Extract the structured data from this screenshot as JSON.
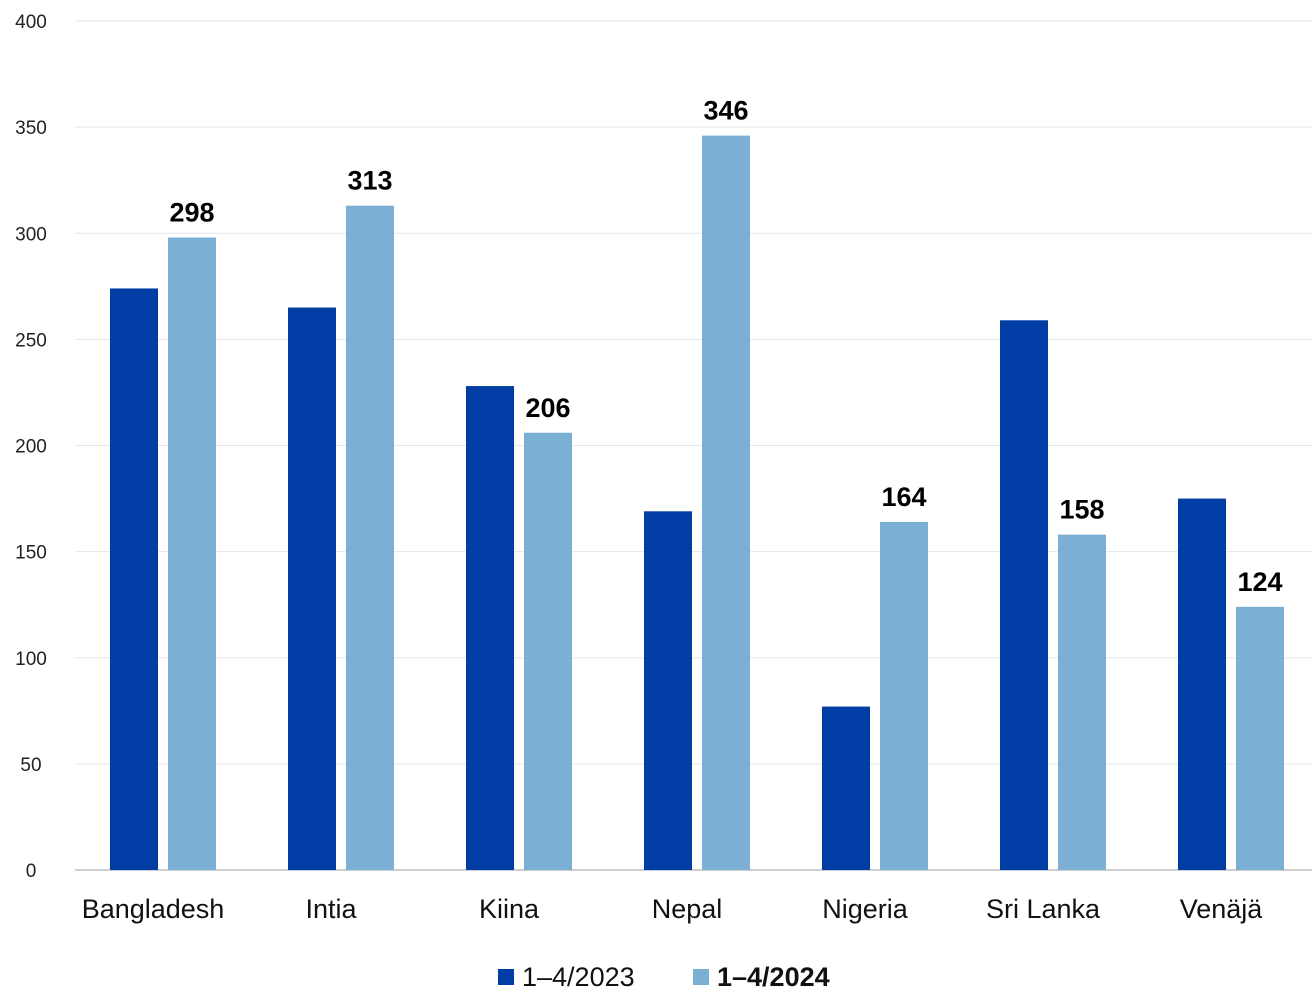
{
  "chart_data": {
    "type": "bar",
    "categories": [
      "Bangladesh",
      "Intia",
      "Kiina",
      "Nepal",
      "Nigeria",
      "Sri Lanka",
      "Venäjä"
    ],
    "series": [
      {
        "name": "1–4/2023",
        "values": [
          274,
          265,
          228,
          169,
          77,
          259,
          175
        ],
        "color": "#003da5",
        "show_labels": false,
        "legend_bold": false
      },
      {
        "name": "1–4/2024",
        "values": [
          298,
          313,
          206,
          346,
          164,
          158,
          124
        ],
        "color": "#7bafd4",
        "show_labels": true,
        "legend_bold": true
      }
    ],
    "ylim": [
      0,
      400
    ],
    "yticks": [
      0,
      50,
      100,
      150,
      200,
      250,
      300,
      350,
      400
    ],
    "grid": true,
    "legend_position": "bottom",
    "title": "",
    "xlabel": "",
    "ylabel": ""
  }
}
